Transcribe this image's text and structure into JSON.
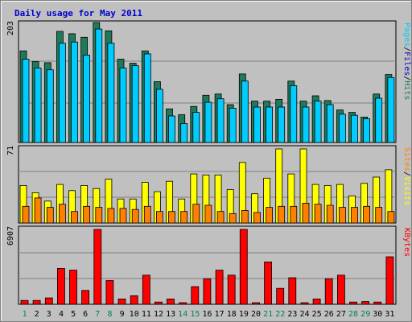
{
  "chart_data": [
    {
      "type": "bar",
      "title": "Daily usage for May 2011",
      "ymax_label": "203",
      "categories": [
        "1",
        "2",
        "3",
        "4",
        "5",
        "6",
        "7",
        "8",
        "9",
        "10",
        "11",
        "12",
        "13",
        "14",
        "15",
        "16",
        "17",
        "18",
        "19",
        "20",
        "21",
        "22",
        "23",
        "24",
        "25",
        "26",
        "27",
        "28",
        "29",
        "30",
        "31"
      ],
      "weekend_days": [
        "1",
        "7",
        "8",
        "14",
        "15",
        "21",
        "22",
        "28",
        "29"
      ],
      "series": [
        {
          "name": "Hits",
          "color": "#1e7a5a",
          "values": [
            155,
            137,
            135,
            188,
            184,
            178,
            203,
            189,
            141,
            134,
            155,
            103,
            57,
            47,
            61,
            80,
            82,
            64,
            116,
            70,
            70,
            73,
            104,
            70,
            79,
            71,
            55,
            51,
            43,
            82,
            115
          ]
        },
        {
          "name": "Files",
          "color": "#00ccff",
          "values": [
            141,
            126,
            123,
            168,
            170,
            148,
            192,
            168,
            126,
            130,
            150,
            90,
            45,
            32,
            51,
            68,
            74,
            58,
            104,
            60,
            60,
            60,
            96,
            60,
            70,
            64,
            48,
            46,
            40,
            75,
            110
          ]
        },
        {
          "name": "Pages",
          "color": "#2020a0",
          "values": [
            0,
            0,
            0,
            0,
            0,
            0,
            0,
            0,
            0,
            0,
            0,
            0,
            0,
            0,
            0,
            0,
            0,
            0,
            0,
            0,
            0,
            0,
            0,
            0,
            0,
            0,
            0,
            0,
            0,
            0,
            0
          ]
        }
      ],
      "legend": [
        "Pages",
        "/",
        "Files",
        "/",
        "Hits"
      ],
      "legend_colors": [
        "#00ccff",
        "#000000",
        "#0000cc",
        "#000000",
        "#1e7a5a"
      ]
    },
    {
      "type": "bar",
      "ymax_label": "71",
      "categories": [
        "1",
        "2",
        "3",
        "4",
        "5",
        "6",
        "7",
        "8",
        "9",
        "10",
        "11",
        "12",
        "13",
        "14",
        "15",
        "16",
        "17",
        "18",
        "19",
        "20",
        "21",
        "22",
        "23",
        "24",
        "25",
        "26",
        "27",
        "28",
        "29",
        "30",
        "31"
      ],
      "series": [
        {
          "name": "Visits",
          "color": "#ffff00",
          "values": [
            36,
            29,
            21,
            37,
            31,
            36,
            33,
            42,
            23,
            23,
            39,
            30,
            40,
            23,
            47,
            46,
            46,
            32,
            58,
            28,
            43,
            71,
            47,
            71,
            37,
            36,
            37,
            26,
            38,
            44,
            51
          ]
        },
        {
          "name": "Sites",
          "color": "#ff8000",
          "values": [
            16,
            24,
            15,
            18,
            11,
            16,
            15,
            14,
            14,
            13,
            16,
            11,
            11,
            11,
            18,
            17,
            11,
            9,
            12,
            10,
            15,
            16,
            16,
            19,
            18,
            17,
            15,
            15,
            16,
            15,
            11
          ]
        }
      ],
      "legend": [
        "Sites",
        "/",
        "Visits"
      ],
      "legend_colors": [
        "#ff8000",
        "#000000",
        "#ffff00"
      ]
    },
    {
      "type": "bar",
      "ymax_label": "6907",
      "categories": [
        "1",
        "2",
        "3",
        "4",
        "5",
        "6",
        "7",
        "8",
        "9",
        "10",
        "11",
        "12",
        "13",
        "14",
        "15",
        "16",
        "17",
        "18",
        "19",
        "20",
        "21",
        "22",
        "23",
        "24",
        "25",
        "26",
        "27",
        "28",
        "29",
        "30",
        "31"
      ],
      "series": [
        {
          "name": "KBytes",
          "color": "#ff0000",
          "values": [
            360,
            360,
            590,
            3310,
            3150,
            1280,
            6907,
            2190,
            490,
            790,
            2690,
            210,
            490,
            150,
            1630,
            2360,
            3150,
            2690,
            6907,
            150,
            3910,
            1470,
            2450,
            150,
            490,
            2360,
            2690,
            210,
            250,
            210,
            4380
          ]
        }
      ],
      "legend": [
        "KBytes"
      ],
      "legend_colors": [
        "#ff0000"
      ]
    }
  ]
}
